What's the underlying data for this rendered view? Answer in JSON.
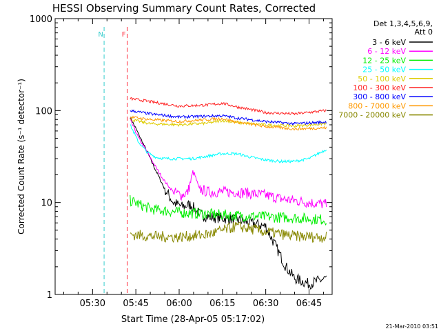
{
  "chart_data": {
    "type": "line",
    "title": "HESSI Observing Summary Count Rates, Corrected",
    "xlabel": "Start Time (28-Apr-05 05:17:02)",
    "ylabel": "Corrected Count Rate (s⁻¹ detector⁻¹)",
    "yscale": "log",
    "ylim": [
      1,
      1000
    ],
    "xlim": [
      "05:17:02",
      "06:53:00"
    ],
    "x_ticks": [
      "05:30",
      "05:45",
      "06:00",
      "06:15",
      "06:30",
      "06:45"
    ],
    "y_ticks": [
      "1",
      "10",
      "100",
      "1000"
    ],
    "legend_header": [
      "Det 1,3,4,5,6,9,",
      "Att 0"
    ],
    "legend_placement": "right",
    "footer_date": "21-Mar-2010 03:51",
    "flags": [
      {
        "label": "N",
        "color": "#33cccc",
        "time": "05:34"
      },
      {
        "label": "F",
        "color": "#ff2233",
        "time": "05:42"
      }
    ],
    "series": [
      {
        "name": "3 - 6 keV",
        "color": "#000000",
        "x": [
          "05:43",
          "05:46",
          "05:49",
          "05:52",
          "05:55",
          "05:58",
          "06:01",
          "06:04",
          "06:07",
          "06:10",
          "06:20",
          "06:30",
          "06:37",
          "06:40",
          "06:45",
          "06:51"
        ],
        "y": [
          85,
          55,
          35,
          22,
          14,
          10,
          9,
          9.5,
          7.5,
          7,
          6.5,
          5.5,
          2,
          1.5,
          1.3,
          1.5
        ]
      },
      {
        "name": "6 - 12 keV",
        "color": "#ff00ff",
        "x": [
          "05:43",
          "05:46",
          "05:49",
          "05:52",
          "05:55",
          "05:58",
          "06:01",
          "06:03",
          "06:05",
          "06:07",
          "06:10",
          "06:15",
          "06:20",
          "06:25",
          "06:30",
          "06:35",
          "06:40",
          "06:45",
          "06:51"
        ],
        "y": [
          80,
          50,
          35,
          24,
          17,
          13,
          12,
          13,
          22,
          14,
          13,
          13,
          13,
          12.5,
          12,
          11,
          10.5,
          10,
          9.5
        ]
      },
      {
        "name": "12 - 25 keV",
        "color": "#00ee00",
        "x": [
          "05:43",
          "05:50",
          "06:00",
          "06:10",
          "06:20",
          "06:30",
          "06:40",
          "06:51"
        ],
        "y": [
          10.5,
          8.5,
          7.8,
          7.5,
          7.2,
          7,
          6.8,
          6.5
        ]
      },
      {
        "name": "25 - 50 keV",
        "color": "#00ffff",
        "x": [
          "05:43",
          "05:46",
          "05:49",
          "05:52",
          "05:55",
          "06:00",
          "06:05",
          "06:10",
          "06:15",
          "06:20",
          "06:25",
          "06:30",
          "06:35",
          "06:40",
          "06:45",
          "06:51"
        ],
        "y": [
          70,
          45,
          35,
          31,
          30,
          30,
          30,
          32,
          34,
          34,
          31,
          29,
          28,
          28,
          30,
          38
        ]
      },
      {
        "name": "50 - 100 keV",
        "color": "#ddcc00",
        "x": [
          "05:43",
          "05:50",
          "06:00",
          "06:10",
          "06:15",
          "06:20",
          "06:30",
          "06:40",
          "06:51"
        ],
        "y": [
          80,
          72,
          70,
          73,
          78,
          74,
          70,
          68,
          72
        ]
      },
      {
        "name": "100 - 300 keV",
        "color": "#ff2222",
        "x": [
          "05:43",
          "05:50",
          "06:00",
          "06:10",
          "06:15",
          "06:20",
          "06:30",
          "06:40",
          "06:51"
        ],
        "y": [
          135,
          125,
          112,
          115,
          120,
          110,
          95,
          92,
          100
        ]
      },
      {
        "name": "300 - 800 keV",
        "color": "#0000ff",
        "x": [
          "05:43",
          "05:50",
          "06:00",
          "06:10",
          "06:15",
          "06:20",
          "06:30",
          "06:40",
          "06:51"
        ],
        "y": [
          100,
          92,
          85,
          87,
          88,
          83,
          76,
          72,
          75
        ]
      },
      {
        "name": "800 - 7000 keV",
        "color": "#ff9900",
        "x": [
          "05:43",
          "05:50",
          "06:00",
          "06:10",
          "06:15",
          "06:20",
          "06:30",
          "06:40",
          "06:51"
        ],
        "y": [
          85,
          80,
          76,
          80,
          82,
          75,
          67,
          63,
          65
        ]
      },
      {
        "name": "7000 - 20000 keV",
        "color": "#888800",
        "x": [
          "05:43",
          "05:50",
          "06:00",
          "06:10",
          "06:20",
          "06:30",
          "06:40",
          "06:51"
        ],
        "y": [
          4.5,
          4.3,
          4.2,
          4.5,
          5.5,
          4.8,
          4.3,
          4.2
        ]
      }
    ]
  }
}
